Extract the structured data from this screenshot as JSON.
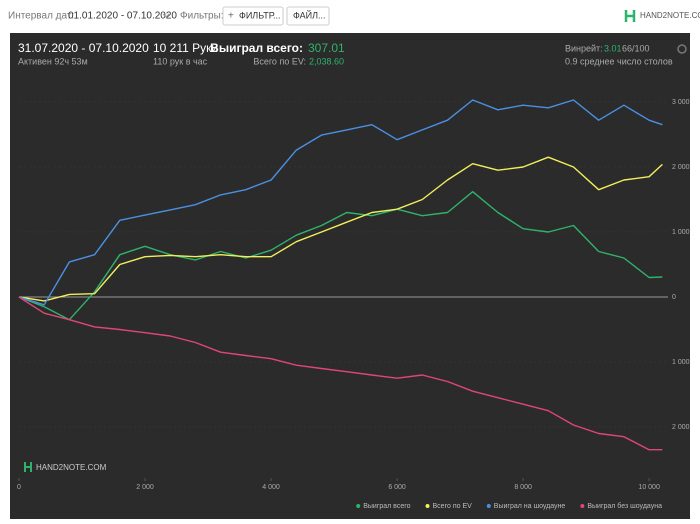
{
  "toolbar": {
    "date_label": "Интервал дат:",
    "date_range": "01.01.2020 - 07.10.2020",
    "filters_label": "Фильтры:",
    "filter_button": "ФИЛЬТР...",
    "file_button": "ФАЙЛ...",
    "logo": "HAND2NOTE.COM"
  },
  "stats": {
    "period": "31.07.2020 - 07.10.2020",
    "active": "Активен 92ч 53м",
    "hands": "10 211 Руки",
    "hands_per_hour": "110 рук в час",
    "won_label": "Выиграл всего:",
    "won_value": "307.01",
    "ev_label": "Всего по EV:",
    "ev_value": "2,038.60",
    "winrate_label": "Винрейт:",
    "winrate_value": "3.01",
    "winrate_sample": "66/100",
    "tables": "0.9 среднее число столов"
  },
  "chart_data": {
    "type": "line",
    "watermark": "HAND2NOTE.COM",
    "x": [
      0,
      400,
      800,
      1200,
      1600,
      2000,
      2400,
      2800,
      3200,
      3600,
      4000,
      4400,
      4800,
      5200,
      5600,
      6000,
      6400,
      6800,
      7200,
      7600,
      8000,
      8400,
      8800,
      9200,
      9600,
      10000,
      10211
    ],
    "xlim": [
      0,
      10220
    ],
    "ylim": [
      -2785,
      3215
    ],
    "xticks": [
      0,
      {
        "value": 2000,
        "label": "2 000"
      },
      {
        "value": 4000,
        "label": "4 000"
      },
      {
        "value": 6000,
        "label": "6 000"
      },
      {
        "value": 8000,
        "label": "8 000"
      },
      {
        "value": 10000,
        "label": "10 000"
      }
    ],
    "yticks": [
      {
        "value": -2000,
        "label": "2 000"
      },
      {
        "value": -1000,
        "label": "1 000"
      },
      0,
      {
        "value": 1000,
        "label": "1 000"
      },
      {
        "value": 2000,
        "label": "2 000"
      },
      {
        "value": 3000,
        "label": "3 000"
      }
    ],
    "series": [
      {
        "name": "Выиграл всего",
        "color": "#2fb36b",
        "values": [
          0,
          -150,
          -350,
          80,
          650,
          780,
          650,
          570,
          700,
          600,
          720,
          950,
          1100,
          1300,
          1250,
          1350,
          1250,
          1300,
          1620,
          1300,
          1050,
          1000,
          1100,
          700,
          600,
          300,
          307
        ]
      },
      {
        "name": "Всего по EV",
        "color": "#f2ee5c",
        "values": [
          0,
          -60,
          40,
          50,
          500,
          620,
          640,
          620,
          650,
          620,
          620,
          850,
          1000,
          1150,
          1300,
          1350,
          1500,
          1800,
          2050,
          1950,
          2000,
          2150,
          2000,
          1650,
          1800,
          1850,
          2040
        ]
      },
      {
        "name": "Выиграл на шоудауне",
        "color": "#4a90e2",
        "values": [
          0,
          -120,
          540,
          650,
          1180,
          1260,
          1340,
          1420,
          1570,
          1650,
          1800,
          2260,
          2490,
          2570,
          2650,
          2420,
          2570,
          2720,
          3030,
          2880,
          2950,
          2910,
          3030,
          2720,
          2950,
          2720,
          2650
        ]
      },
      {
        "name": "Выиграл без шоудауна",
        "color": "#e0457b",
        "values": [
          0,
          -250,
          -350,
          -460,
          -500,
          -550,
          -600,
          -700,
          -850,
          -900,
          -950,
          -1050,
          -1100,
          -1150,
          -1200,
          -1250,
          -1200,
          -1300,
          -1450,
          -1550,
          -1650,
          -1750,
          -1970,
          -2100,
          -2150,
          -2350,
          -2350
        ]
      }
    ]
  }
}
